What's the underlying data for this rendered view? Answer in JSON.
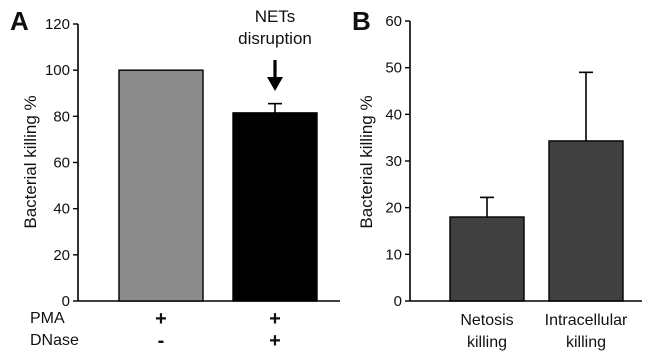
{
  "chart_data": [
    {
      "type": "bar",
      "panel_label": "A",
      "ylabel": "Bacterial killing %",
      "ylim": [
        0,
        120
      ],
      "yticks": [
        "0",
        "20",
        "40",
        "60",
        "80",
        "100",
        "120"
      ],
      "categories": [
        "PMA + / DNase -",
        "PMA + / DNase +"
      ],
      "values": [
        100,
        81.5
      ],
      "errors": [
        0,
        4
      ],
      "bar_colors": [
        "#8c8c8c",
        "#000000"
      ],
      "annotation": {
        "lines": [
          "NETs",
          "disruption"
        ],
        "target_bar": 1
      },
      "condition_rows": [
        {
          "label": "PMA",
          "signs": [
            "+",
            "+"
          ]
        },
        {
          "label": "DNase",
          "signs": [
            "-",
            "+"
          ]
        }
      ]
    },
    {
      "type": "bar",
      "panel_label": "B",
      "ylabel": "Bacterial killing %",
      "ylim": [
        0,
        60
      ],
      "yticks": [
        "0",
        "10",
        "20",
        "30",
        "40",
        "50",
        "60"
      ],
      "categories": [
        [
          "Netosis",
          "killing"
        ],
        [
          "Intracellular",
          "killing"
        ]
      ],
      "values": [
        18,
        34.3
      ],
      "errors": [
        4.2,
        14.7
      ],
      "bar_colors": [
        "#404040",
        "#404040"
      ]
    }
  ]
}
